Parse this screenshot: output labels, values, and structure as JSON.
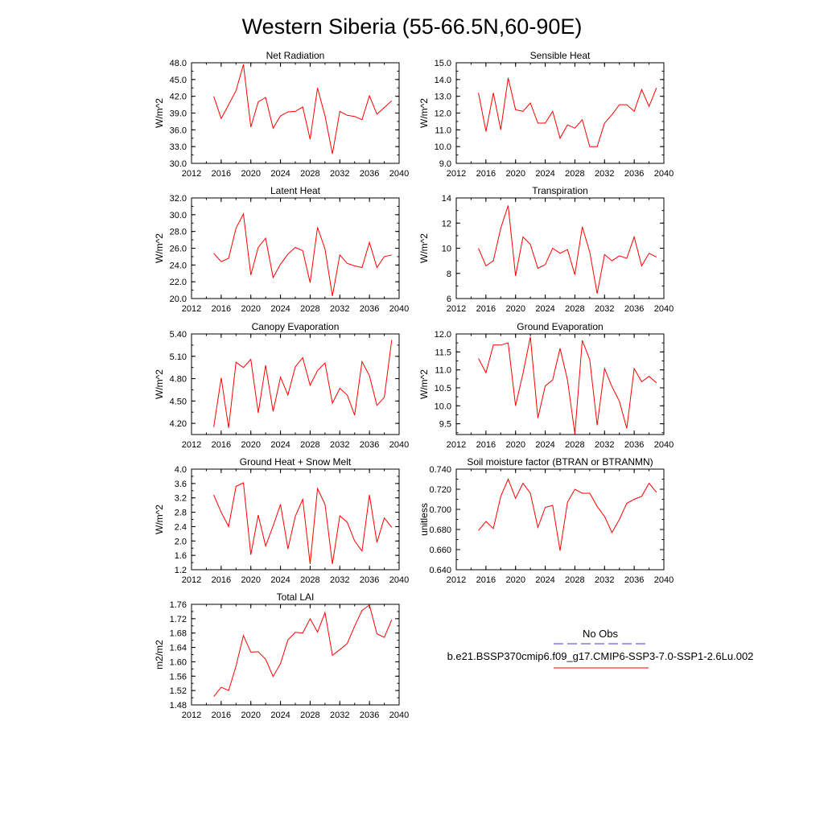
{
  "page_title": "Western Siberia (55-66.5N,60-90E)",
  "line_color": "#ff0000",
  "obs_color": "#3b3bd6",
  "legend": {
    "obs_label": "No Obs",
    "model_label": "b.e21.BSSP370cmip6.f09_g17.CMIP6-SSP3-7.0-SSP1-2.6Lu.002"
  },
  "chart_data": [
    {
      "type": "line",
      "title": "Net Radiation",
      "ylabel": "W/m^2",
      "xlim": [
        2012,
        2040
      ],
      "xticks": [
        "2012",
        "2016",
        "2020",
        "2024",
        "2028",
        "2032",
        "2036",
        "2040"
      ],
      "ylim": [
        30,
        48
      ],
      "yticks": [
        "30.0",
        "33.0",
        "36.0",
        "39.0",
        "42.0",
        "45.0",
        "48.0"
      ],
      "x": [
        2015,
        2016,
        2017,
        2018,
        2019,
        2020,
        2021,
        2022,
        2023,
        2024,
        2025,
        2026,
        2027,
        2028,
        2029,
        2030,
        2031,
        2032,
        2033,
        2034,
        2035,
        2036,
        2037,
        2038,
        2039
      ],
      "values": [
        42.0,
        38.0,
        40.5,
        43.0,
        47.7,
        36.5,
        41.0,
        41.8,
        36.3,
        38.5,
        39.2,
        39.3,
        40.1,
        34.3,
        43.5,
        38.5,
        31.7,
        39.3,
        38.6,
        38.4,
        37.8,
        42.1,
        38.8,
        40.0,
        41.2
      ]
    },
    {
      "type": "line",
      "title": "Sensible Heat",
      "ylabel": "W/m^2",
      "xlim": [
        2012,
        2040
      ],
      "xticks": [
        "2012",
        "2016",
        "2020",
        "2024",
        "2028",
        "2032",
        "2036",
        "2040"
      ],
      "ylim": [
        9,
        15
      ],
      "yticks": [
        "9.0",
        "10.0",
        "11.0",
        "12.0",
        "13.0",
        "14.0",
        "15.0"
      ],
      "x": [
        2015,
        2016,
        2017,
        2018,
        2019,
        2020,
        2021,
        2022,
        2023,
        2024,
        2025,
        2026,
        2027,
        2028,
        2029,
        2030,
        2031,
        2032,
        2033,
        2034,
        2035,
        2036,
        2037,
        2038,
        2039
      ],
      "values": [
        13.2,
        10.9,
        13.2,
        11.0,
        14.1,
        12.2,
        12.1,
        12.6,
        11.4,
        11.4,
        12.1,
        10.5,
        11.3,
        11.1,
        11.6,
        10.0,
        10.0,
        11.4,
        11.9,
        12.5,
        12.5,
        12.1,
        13.4,
        12.4,
        13.5
      ]
    },
    {
      "type": "line",
      "title": "Latent Heat",
      "ylabel": "W/m^2",
      "xlim": [
        2012,
        2040
      ],
      "xticks": [
        "2012",
        "2016",
        "2020",
        "2024",
        "2028",
        "2032",
        "2036",
        "2040"
      ],
      "ylim": [
        20,
        32
      ],
      "yticks": [
        "20.0",
        "22.0",
        "24.0",
        "26.0",
        "28.0",
        "30.0",
        "32.0"
      ],
      "x": [
        2015,
        2016,
        2017,
        2018,
        2019,
        2020,
        2021,
        2022,
        2023,
        2024,
        2025,
        2026,
        2027,
        2028,
        2029,
        2030,
        2031,
        2032,
        2033,
        2034,
        2035,
        2036,
        2037,
        2038,
        2039
      ],
      "values": [
        25.4,
        24.4,
        24.8,
        28.4,
        30.1,
        22.8,
        26.1,
        27.2,
        22.5,
        24.1,
        25.3,
        26.1,
        25.7,
        21.9,
        28.5,
        25.9,
        20.3,
        25.2,
        24.2,
        23.9,
        23.7,
        26.7,
        23.7,
        25.0,
        25.2
      ]
    },
    {
      "type": "line",
      "title": "Transpiration",
      "ylabel": "W/m^2",
      "xlim": [
        2012,
        2040
      ],
      "xticks": [
        "2012",
        "2016",
        "2020",
        "2024",
        "2028",
        "2032",
        "2036",
        "2040"
      ],
      "ylim": [
        6,
        14
      ],
      "yticks": [
        "6",
        "8",
        "10",
        "12",
        "14"
      ],
      "x": [
        2015,
        2016,
        2017,
        2018,
        2019,
        2020,
        2021,
        2022,
        2023,
        2024,
        2025,
        2026,
        2027,
        2028,
        2029,
        2030,
        2031,
        2032,
        2033,
        2034,
        2035,
        2036,
        2037,
        2038,
        2039
      ],
      "values": [
        10.0,
        8.6,
        9.0,
        11.6,
        13.4,
        7.8,
        10.9,
        10.3,
        8.4,
        8.7,
        10.0,
        9.6,
        9.9,
        7.9,
        11.7,
        9.7,
        6.4,
        9.5,
        9.0,
        9.4,
        9.2,
        10.9,
        8.6,
        9.6,
        9.3
      ]
    },
    {
      "type": "line",
      "title": "Canopy Evaporation",
      "ylabel": "W/m^2",
      "xlim": [
        2012,
        2040
      ],
      "xticks": [
        "2012",
        "2016",
        "2020",
        "2024",
        "2028",
        "2032",
        "2036",
        "2040"
      ],
      "ylim": [
        4.05,
        5.4
      ],
      "yticks": [
        "4.20",
        "4.50",
        "4.80",
        "5.10",
        "5.40"
      ],
      "x": [
        2015,
        2016,
        2017,
        2018,
        2019,
        2020,
        2021,
        2022,
        2023,
        2024,
        2025,
        2026,
        2027,
        2028,
        2029,
        2030,
        2031,
        2032,
        2033,
        2034,
        2035,
        2036,
        2037,
        2038,
        2039
      ],
      "values": [
        4.15,
        4.81,
        4.14,
        5.02,
        4.95,
        5.06,
        4.34,
        4.98,
        4.36,
        4.82,
        4.58,
        4.96,
        5.08,
        4.71,
        4.91,
        5.01,
        4.47,
        4.67,
        4.58,
        4.31,
        5.03,
        4.84,
        4.44,
        4.55,
        5.32
      ]
    },
    {
      "type": "line",
      "title": "Ground Evaporation",
      "ylabel": "W/m^2",
      "xlim": [
        2012,
        2040
      ],
      "xticks": [
        "2012",
        "2016",
        "2020",
        "2024",
        "2028",
        "2032",
        "2036",
        "2040"
      ],
      "ylim": [
        9.2,
        12.0
      ],
      "yticks": [
        "9.5",
        "10.0",
        "10.5",
        "11.0",
        "11.5",
        "12.0"
      ],
      "x": [
        2015,
        2016,
        2017,
        2018,
        2019,
        2020,
        2021,
        2022,
        2023,
        2024,
        2025,
        2026,
        2027,
        2028,
        2029,
        2030,
        2031,
        2032,
        2033,
        2034,
        2035,
        2036,
        2037,
        2038,
        2039
      ],
      "values": [
        11.32,
        10.92,
        11.69,
        11.69,
        11.75,
        10.0,
        10.9,
        11.92,
        9.66,
        10.55,
        10.72,
        11.6,
        10.72,
        9.22,
        11.82,
        11.28,
        9.46,
        11.04,
        10.53,
        10.13,
        9.37,
        11.04,
        10.67,
        10.82,
        10.64
      ]
    },
    {
      "type": "line",
      "title": "Ground Heat + Snow Melt",
      "ylabel": "W/m^2",
      "xlim": [
        2012,
        2040
      ],
      "xticks": [
        "2012",
        "2016",
        "2020",
        "2024",
        "2028",
        "2032",
        "2036",
        "2040"
      ],
      "ylim": [
        1.2,
        4.0
      ],
      "yticks": [
        "1.2",
        "1.6",
        "2.0",
        "2.4",
        "2.8",
        "3.2",
        "3.6",
        "4.0"
      ],
      "x": [
        2015,
        2016,
        2017,
        2018,
        2019,
        2020,
        2021,
        2022,
        2023,
        2024,
        2025,
        2026,
        2027,
        2028,
        2029,
        2030,
        2031,
        2032,
        2033,
        2034,
        2035,
        2036,
        2037,
        2038,
        2039
      ],
      "values": [
        3.28,
        2.8,
        2.4,
        3.52,
        3.62,
        1.62,
        2.72,
        1.86,
        2.42,
        3.02,
        1.78,
        2.69,
        3.16,
        1.36,
        3.46,
        3.02,
        1.36,
        2.7,
        2.52,
        2.0,
        1.72,
        3.28,
        1.96,
        2.64,
        2.38
      ]
    },
    {
      "type": "line",
      "title": "Soil moisture factor (BTRAN or BTRANMN)",
      "ylabel": "unitless",
      "xlim": [
        2012,
        2040
      ],
      "xticks": [
        "2012",
        "2016",
        "2020",
        "2024",
        "2028",
        "2032",
        "2036",
        "2040"
      ],
      "ylim": [
        0.64,
        0.74
      ],
      "yticks": [
        "0.640",
        "0.660",
        "0.680",
        "0.700",
        "0.720",
        "0.740"
      ],
      "x": [
        2015,
        2016,
        2017,
        2018,
        2019,
        2020,
        2021,
        2022,
        2023,
        2024,
        2025,
        2026,
        2027,
        2028,
        2029,
        2030,
        2031,
        2032,
        2033,
        2034,
        2035,
        2036,
        2037,
        2038,
        2039
      ],
      "values": [
        0.679,
        0.688,
        0.681,
        0.713,
        0.73,
        0.711,
        0.726,
        0.716,
        0.682,
        0.702,
        0.704,
        0.659,
        0.707,
        0.72,
        0.716,
        0.716,
        0.703,
        0.693,
        0.677,
        0.69,
        0.706,
        0.71,
        0.713,
        0.726,
        0.717
      ]
    },
    {
      "type": "line",
      "title": "Total LAI",
      "ylabel": "m2/m2",
      "xlim": [
        2012,
        2040
      ],
      "xticks": [
        "2012",
        "2016",
        "2020",
        "2024",
        "2028",
        "2032",
        "2036",
        "2040"
      ],
      "ylim": [
        1.48,
        1.76
      ],
      "yticks": [
        "1.48",
        "1.52",
        "1.56",
        "1.60",
        "1.64",
        "1.68",
        "1.72",
        "1.76"
      ],
      "x": [
        2015,
        2016,
        2017,
        2018,
        2019,
        2020,
        2021,
        2022,
        2023,
        2024,
        2025,
        2026,
        2027,
        2028,
        2029,
        2030,
        2031,
        2032,
        2033,
        2034,
        2035,
        2036,
        2037,
        2038,
        2039
      ],
      "values": [
        1.503,
        1.529,
        1.52,
        1.588,
        1.673,
        1.627,
        1.628,
        1.607,
        1.559,
        1.595,
        1.661,
        1.682,
        1.68,
        1.72,
        1.683,
        1.737,
        1.618,
        1.634,
        1.651,
        1.699,
        1.743,
        1.758,
        1.678,
        1.668,
        1.717
      ]
    }
  ]
}
